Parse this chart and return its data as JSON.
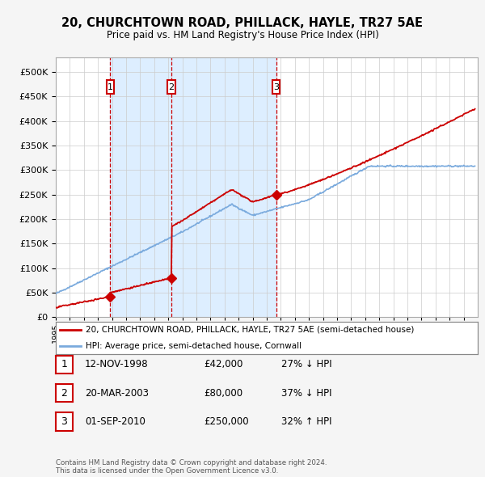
{
  "title": "20, CHURCHTOWN ROAD, PHILLACK, HAYLE, TR27 5AE",
  "subtitle": "Price paid vs. HM Land Registry's House Price Index (HPI)",
  "ytick_values": [
    0,
    50000,
    100000,
    150000,
    200000,
    250000,
    300000,
    350000,
    400000,
    450000,
    500000
  ],
  "ylim": [
    0,
    530000
  ],
  "xlim_start": 1995.0,
  "xlim_end": 2025.0,
  "sale_dates": [
    1998.87,
    2003.22,
    2010.67
  ],
  "sale_prices": [
    42000,
    80000,
    250000
  ],
  "sale_labels": [
    "1",
    "2",
    "3"
  ],
  "legend_line1": "20, CHURCHTOWN ROAD, PHILLACK, HAYLE, TR27 5AE (semi-detached house)",
  "legend_line2": "HPI: Average price, semi-detached house, Cornwall",
  "table_data": [
    [
      "1",
      "12-NOV-1998",
      "£42,000",
      "27% ↓ HPI"
    ],
    [
      "2",
      "20-MAR-2003",
      "£80,000",
      "37% ↓ HPI"
    ],
    [
      "3",
      "01-SEP-2010",
      "£250,000",
      "32% ↑ HPI"
    ]
  ],
  "footnote": "Contains HM Land Registry data © Crown copyright and database right 2024.\nThis data is licensed under the Open Government Licence v3.0.",
  "sale_line_color": "#cc0000",
  "hpi_line_color": "#7aaadd",
  "fig_bg_color": "#f5f5f5",
  "plot_bg_color": "#ffffff",
  "grid_color": "#cccccc",
  "vline_color": "#cc0000",
  "box_color": "#cc0000",
  "span_color": "#ddeeff"
}
